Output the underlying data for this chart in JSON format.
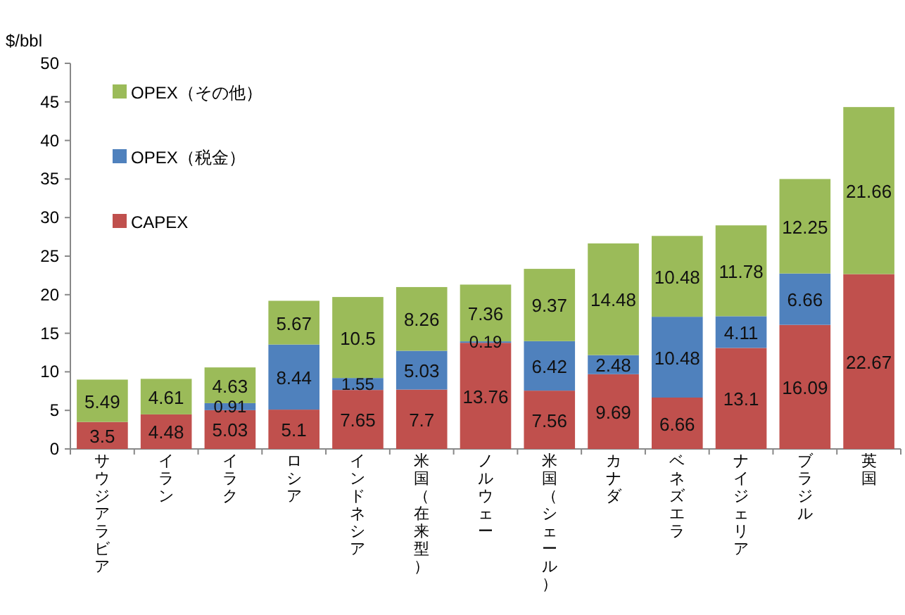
{
  "chart_data": {
    "type": "bar",
    "ylabel": "$/bbl",
    "stacked": true,
    "data_labels": true,
    "legend": "top left",
    "ylim": [
      0,
      50
    ],
    "yticks": [
      0,
      5,
      10,
      15,
      20,
      25,
      30,
      35,
      40,
      45,
      50
    ],
    "categories": [
      "サウジアラビア",
      "イラン",
      "イラク",
      "ロシア",
      "インドネシア",
      "米国（在来型）",
      "ノルウェー",
      "米国（シェール）",
      "カナダ",
      "ベネズエラ",
      "ナイジェリア",
      "ブラジル",
      "英国"
    ],
    "series": [
      {
        "name": "CAPEX",
        "color": "#c0504d",
        "values": [
          3.5,
          4.48,
          5.03,
          5.1,
          7.65,
          7.7,
          13.76,
          7.56,
          9.69,
          6.66,
          13.1,
          16.09,
          22.67
        ]
      },
      {
        "name": "OPEX（税金）",
        "color": "#4f81bd",
        "values": [
          null,
          null,
          0.91,
          8.44,
          1.55,
          5.03,
          0.19,
          6.42,
          2.48,
          10.48,
          4.11,
          6.66,
          null
        ]
      },
      {
        "name": "OPEX（その他）",
        "color": "#9bbb59",
        "values": [
          5.49,
          4.61,
          4.63,
          5.67,
          10.5,
          8.26,
          7.36,
          9.37,
          14.48,
          10.48,
          11.78,
          12.25,
          21.66
        ]
      }
    ]
  }
}
